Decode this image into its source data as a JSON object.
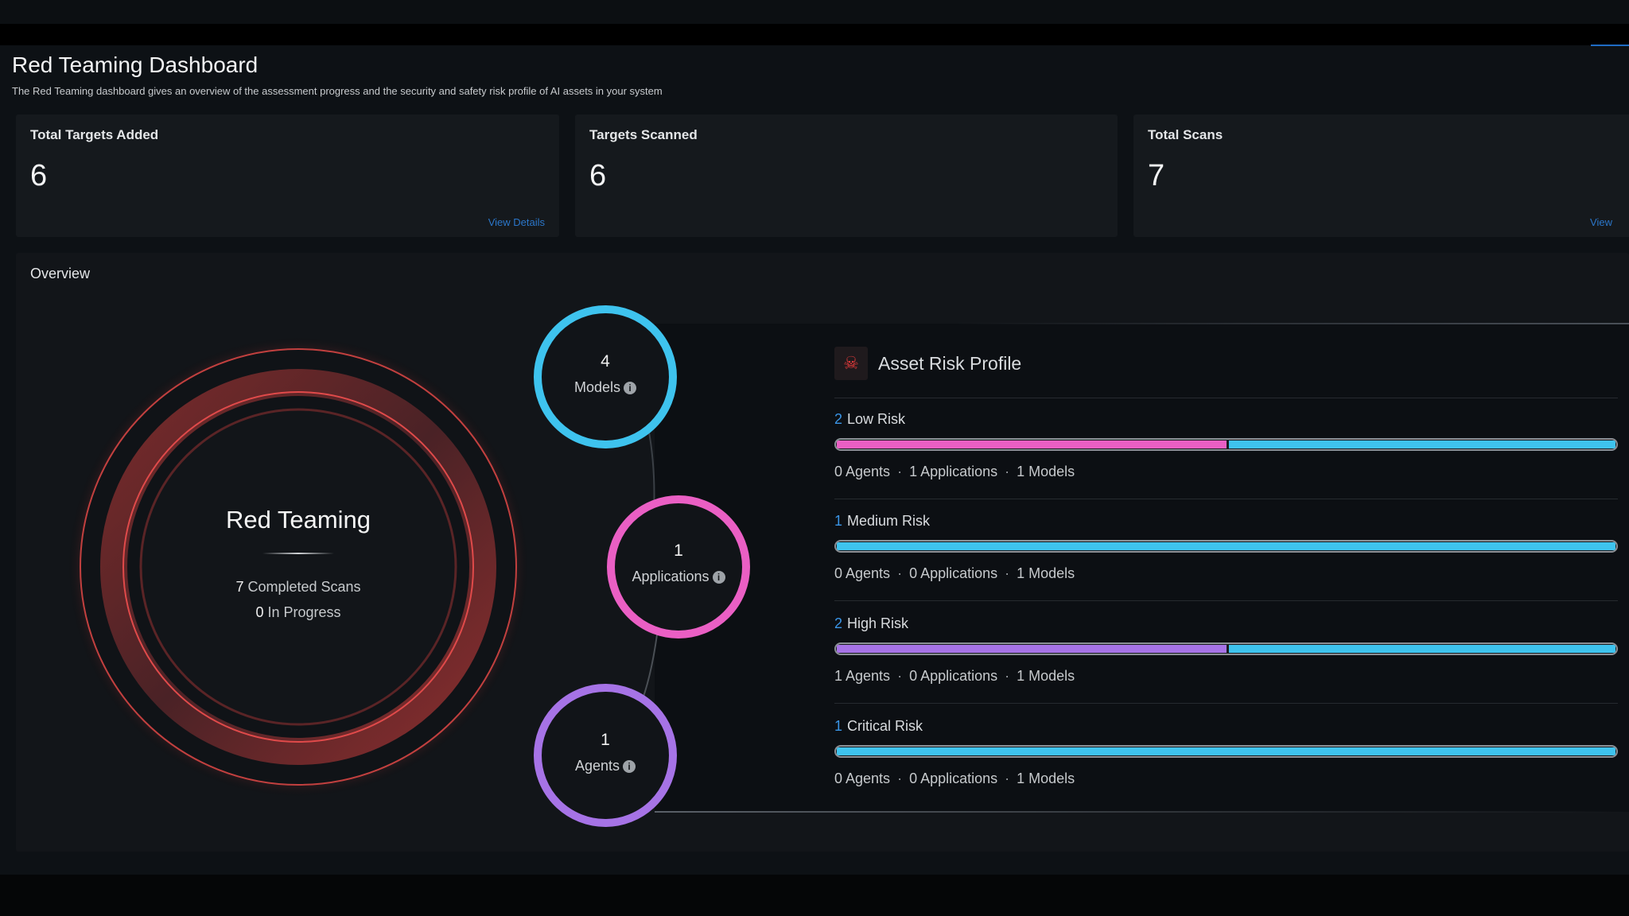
{
  "header": {
    "title": "Red Teaming Dashboard",
    "subtitle": "The Red Teaming dashboard gives an overview of the assessment progress and the security and safety risk profile of AI assets in your system"
  },
  "cards": [
    {
      "title": "Total Targets Added",
      "value": "6",
      "link": "View Details"
    },
    {
      "title": "Targets Scanned",
      "value": "6",
      "link": ""
    },
    {
      "title": "Total Scans",
      "value": "7",
      "link": "View"
    }
  ],
  "overview": {
    "title": "Overview",
    "red_teaming": {
      "title": "Red Teaming",
      "completed_count": "7",
      "completed_label": "Completed Scans",
      "in_progress_count": "0",
      "in_progress_label": "In Progress"
    },
    "nodes": [
      {
        "count": "4",
        "label": "Models",
        "color": "#3ec3ee",
        "icon": "info-icon"
      },
      {
        "count": "1",
        "label": "Applications",
        "color": "#ea5fc4",
        "icon": "info-icon"
      },
      {
        "count": "1",
        "label": "Agents",
        "color": "#a673e6",
        "icon": "info-icon"
      }
    ],
    "asset_risk_profile": {
      "title": "Asset Risk Profile",
      "icon": "skull-icon",
      "rows": [
        {
          "count": "2",
          "label": "Low Risk",
          "agents": "0 Agents",
          "applications": "1 Applications",
          "models": "1 Models",
          "segments": [
            {
              "type": "applications",
              "value": 1,
              "color": "#ea5fc4"
            },
            {
              "type": "models",
              "value": 1,
              "color": "#3ec3ee"
            }
          ]
        },
        {
          "count": "1",
          "label": "Medium Risk",
          "agents": "0 Agents",
          "applications": "0 Applications",
          "models": "1 Models",
          "segments": [
            {
              "type": "models",
              "value": 1,
              "color": "#3ec3ee"
            }
          ]
        },
        {
          "count": "2",
          "label": "High Risk",
          "agents": "1 Agents",
          "applications": "0 Applications",
          "models": "1 Models",
          "segments": [
            {
              "type": "agents",
              "value": 1,
              "color": "#a673e6"
            },
            {
              "type": "models",
              "value": 1,
              "color": "#3ec3ee"
            }
          ]
        },
        {
          "count": "1",
          "label": "Critical Risk",
          "agents": "0 Agents",
          "applications": "0 Applications",
          "models": "1 Models",
          "segments": [
            {
              "type": "models",
              "value": 1,
              "color": "#3ec3ee"
            }
          ]
        }
      ]
    }
  }
}
